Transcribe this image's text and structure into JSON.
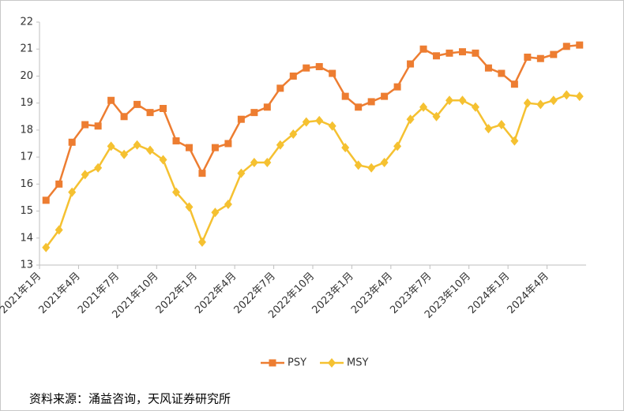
{
  "chart_data": {
    "type": "line",
    "categories": [
      "2021年1月",
      null,
      null,
      "2021年4月",
      null,
      null,
      "2021年7月",
      null,
      null,
      "2021年10月",
      null,
      null,
      "2022年1月",
      null,
      null,
      "2022年4月",
      null,
      null,
      "2022年7月",
      null,
      null,
      "2022年10月",
      null,
      null,
      "2023年1月",
      null,
      null,
      "2023年4月",
      null,
      null,
      "2023年7月",
      null,
      null,
      "2023年10月",
      null,
      null,
      "2024年1月",
      null,
      null,
      "2024年4月",
      null,
      null
    ],
    "series": [
      {
        "name": "PSY",
        "color": "#ED7D31",
        "marker": "square",
        "values": [
          15.4,
          16.0,
          17.55,
          18.2,
          18.15,
          19.1,
          18.5,
          18.95,
          18.65,
          18.8,
          17.6,
          17.35,
          16.4,
          17.35,
          17.5,
          18.4,
          18.65,
          18.85,
          19.55,
          20.0,
          20.3,
          20.35,
          20.1,
          19.25,
          18.85,
          19.05,
          19.25,
          19.6,
          20.45,
          21.0,
          20.75,
          20.85,
          20.9,
          20.85,
          20.3,
          20.1,
          19.7,
          20.7,
          20.65,
          20.8,
          21.1,
          21.15
        ]
      },
      {
        "name": "MSY",
        "color": "#F5C131",
        "marker": "diamond",
        "values": [
          13.65,
          14.3,
          15.7,
          16.35,
          16.6,
          17.4,
          17.1,
          17.45,
          17.25,
          16.9,
          15.7,
          15.15,
          13.85,
          14.95,
          15.25,
          16.4,
          16.8,
          16.8,
          17.45,
          17.85,
          18.3,
          18.35,
          18.15,
          17.35,
          16.7,
          16.6,
          16.8,
          17.4,
          18.4,
          18.85,
          18.5,
          19.1,
          19.1,
          18.85,
          18.05,
          18.2,
          17.6,
          19.0,
          18.95,
          19.1,
          19.3,
          19.25
        ]
      }
    ],
    "ylim": [
      13,
      22
    ],
    "yticks": [
      13,
      14,
      15,
      16,
      17,
      18,
      19,
      20,
      21,
      22
    ],
    "legend": "bottom",
    "grid": false
  },
  "source": "资料来源：涌益咨询，天风证券研究所"
}
